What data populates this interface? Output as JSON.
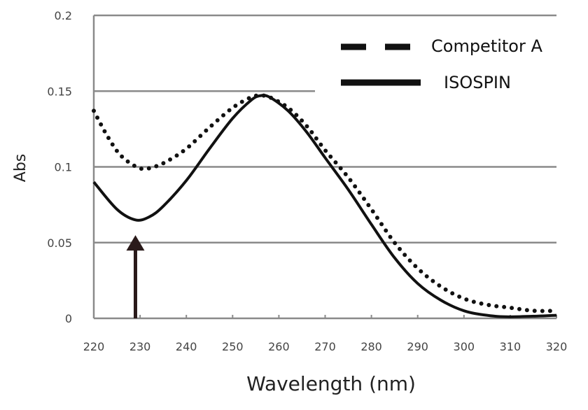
{
  "chart_data": {
    "type": "line",
    "title": "",
    "xlabel": "Wavelength (nm)",
    "ylabel": "Abs",
    "xlim": [
      220,
      320
    ],
    "ylim": [
      0,
      0.2
    ],
    "xticks": [
      "220",
      "230",
      "240",
      "250",
      "260",
      "270",
      "280",
      "290",
      "300",
      "310",
      "320"
    ],
    "yticks": [
      "0",
      "0.05",
      "0.1",
      "0.15",
      "0.2"
    ],
    "grid": "horizontal",
    "legend_position": "top-right",
    "annotation": {
      "type": "arrow",
      "x": 229,
      "from": 0,
      "to": 0.054
    },
    "series": [
      {
        "name": "Competitor A",
        "style": "dotted",
        "color": "#111111",
        "x": [
          220,
          223,
          226,
          230,
          233,
          236,
          240,
          245,
          250,
          254,
          256,
          258,
          262,
          266,
          270,
          275,
          280,
          285,
          290,
          295,
          300,
          305,
          310,
          315,
          320
        ],
        "y": [
          0.137,
          0.12,
          0.107,
          0.099,
          0.1,
          0.104,
          0.112,
          0.126,
          0.139,
          0.146,
          0.147,
          0.146,
          0.139,
          0.127,
          0.111,
          0.093,
          0.072,
          0.05,
          0.033,
          0.021,
          0.013,
          0.009,
          0.007,
          0.005,
          0.005
        ]
      },
      {
        "name": "ISOSPIN",
        "style": "solid",
        "color": "#111111",
        "x": [
          220,
          225,
          229,
          232,
          235,
          240,
          245,
          250,
          254,
          256,
          258,
          262,
          266,
          270,
          275,
          280,
          285,
          290,
          295,
          300,
          305,
          310,
          320
        ],
        "y": [
          0.09,
          0.072,
          0.065,
          0.067,
          0.074,
          0.091,
          0.112,
          0.132,
          0.144,
          0.147,
          0.146,
          0.137,
          0.123,
          0.106,
          0.085,
          0.062,
          0.04,
          0.023,
          0.012,
          0.005,
          0.002,
          0.001,
          0.002
        ]
      }
    ]
  }
}
